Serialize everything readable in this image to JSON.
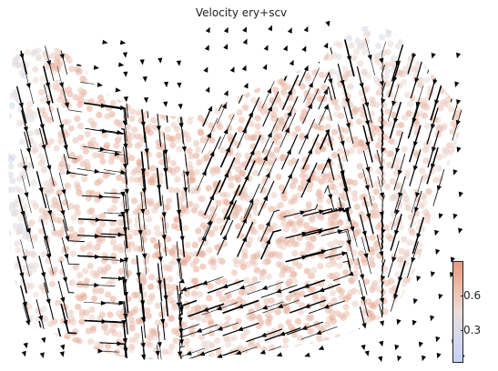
{
  "chart_data": {
    "type": "scatter",
    "subtype": "velocity-streamplot-embedding",
    "title": "Velocity ery+scv",
    "xlabel": "",
    "ylabel": "",
    "axes_visible": false,
    "grid": false,
    "point_color_scale": {
      "colormap": "coolwarm",
      "low_color": "#c4d3f6",
      "mid_color": "#ecdcd6",
      "high_color": "#e69a80",
      "range": [
        0.15,
        0.85
      ],
      "ticks": [
        {
          "value": 0.3,
          "label": "0.3"
        },
        {
          "value": 0.6,
          "label": "0.6"
        }
      ],
      "position": "bottom-right"
    },
    "stream_color": "#000000"
  }
}
